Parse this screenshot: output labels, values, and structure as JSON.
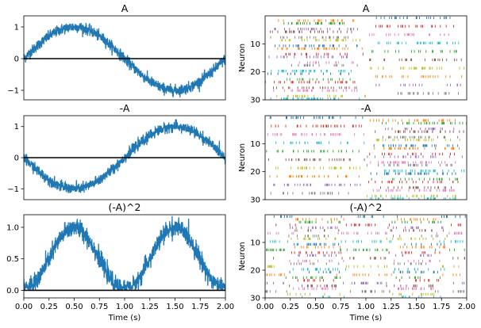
{
  "chart_data": [
    {
      "type": "line",
      "title": "A",
      "xlabel": "",
      "ylabel": "",
      "xlim": [
        0,
        2
      ],
      "ylim": [
        -1.3,
        1.35
      ],
      "yticks": [
        "1",
        "0",
        "−1"
      ],
      "grid": false,
      "series": [
        {
          "color": "#1f77b4",
          "signal": "sine",
          "amplitude": 1.0,
          "period_s": 2.0,
          "noise": 0.08,
          "x": [
            0,
            0.25,
            0.5,
            0.75,
            1.0,
            1.25,
            1.5,
            1.75,
            2.0
          ],
          "y": [
            0,
            0.71,
            1.0,
            0.71,
            0,
            -0.71,
            -1.0,
            -0.71,
            0
          ]
        },
        {
          "color": "#000000",
          "signal": "zero-line",
          "x": [
            0,
            2
          ],
          "y": [
            0,
            0
          ]
        }
      ]
    },
    {
      "type": "scatter",
      "title": "A",
      "xlabel": "",
      "ylabel": "Neuron",
      "xlim": [
        0,
        2
      ],
      "ylim": [
        30,
        0
      ],
      "yticks": [
        "10",
        "20",
        "30"
      ],
      "neurons": 30,
      "marker": "vertical-tick",
      "colors": [
        "#1f77b4",
        "#ff7f0e",
        "#2ca02c",
        "#d62728",
        "#9467bd",
        "#8c564b",
        "#e377c2",
        "#7f7f7f",
        "#bcbd22",
        "#17becf"
      ]
    },
    {
      "type": "line",
      "title": "-A",
      "xlabel": "",
      "ylabel": "",
      "xlim": [
        0,
        2
      ],
      "ylim": [
        -1.35,
        1.35
      ],
      "yticks": [
        "1",
        "0",
        "−1"
      ],
      "grid": false,
      "series": [
        {
          "color": "#1f77b4",
          "signal": "neg-sine",
          "amplitude": 1.0,
          "period_s": 2.0,
          "noise": 0.08,
          "x": [
            0,
            0.25,
            0.5,
            0.75,
            1.0,
            1.25,
            1.5,
            1.75,
            2.0
          ],
          "y": [
            0,
            -0.71,
            -1.0,
            -0.71,
            0,
            0.71,
            1.0,
            0.71,
            0
          ]
        },
        {
          "color": "#000000",
          "signal": "zero-line",
          "x": [
            0,
            2
          ],
          "y": [
            0,
            0
          ]
        }
      ]
    },
    {
      "type": "scatter",
      "title": "-A",
      "xlabel": "",
      "ylabel": "Neuron",
      "xlim": [
        0,
        2
      ],
      "ylim": [
        30,
        0
      ],
      "yticks": [
        "10",
        "20",
        "30"
      ],
      "neurons": 30,
      "marker": "vertical-tick",
      "colors": [
        "#1f77b4",
        "#ff7f0e",
        "#2ca02c",
        "#d62728",
        "#9467bd",
        "#8c564b",
        "#e377c2",
        "#7f7f7f",
        "#bcbd22",
        "#17becf"
      ]
    },
    {
      "type": "line",
      "title": "(-A)^2",
      "xlabel": "Time (s)",
      "ylabel": "",
      "xlim": [
        0,
        2
      ],
      "ylim": [
        -0.12,
        1.2
      ],
      "xticks": [
        "0.00",
        "0.25",
        "0.50",
        "0.75",
        "1.00",
        "1.25",
        "1.50",
        "1.75",
        "2.00"
      ],
      "yticks": [
        "1.0",
        "0.5",
        "0.0"
      ],
      "grid": false,
      "series": [
        {
          "color": "#1f77b4",
          "signal": "sine-squared",
          "amplitude": 1.0,
          "period_s": 2.0,
          "noise": 0.07,
          "x": [
            0,
            0.25,
            0.5,
            0.75,
            1.0,
            1.25,
            1.5,
            1.75,
            2.0
          ],
          "y": [
            0,
            0.5,
            1.0,
            0.5,
            0,
            0.5,
            1.0,
            0.5,
            0
          ]
        },
        {
          "color": "#000000",
          "signal": "zero-line",
          "x": [
            0,
            2
          ],
          "y": [
            0,
            0
          ]
        }
      ]
    },
    {
      "type": "scatter",
      "title": "(-A)^2",
      "xlabel": "Time (s)",
      "ylabel": "Neuron",
      "xlim": [
        0,
        2
      ],
      "ylim": [
        30,
        0
      ],
      "xticks": [
        "0.00",
        "0.25",
        "0.50",
        "0.75",
        "1.00",
        "1.25",
        "1.50",
        "1.75",
        "2.00"
      ],
      "yticks": [
        "10",
        "20",
        "30"
      ],
      "neurons": 30,
      "marker": "vertical-tick",
      "colors": [
        "#1f77b4",
        "#ff7f0e",
        "#2ca02c",
        "#d62728",
        "#9467bd",
        "#8c564b",
        "#e377c2",
        "#7f7f7f",
        "#bcbd22",
        "#17becf"
      ]
    }
  ]
}
